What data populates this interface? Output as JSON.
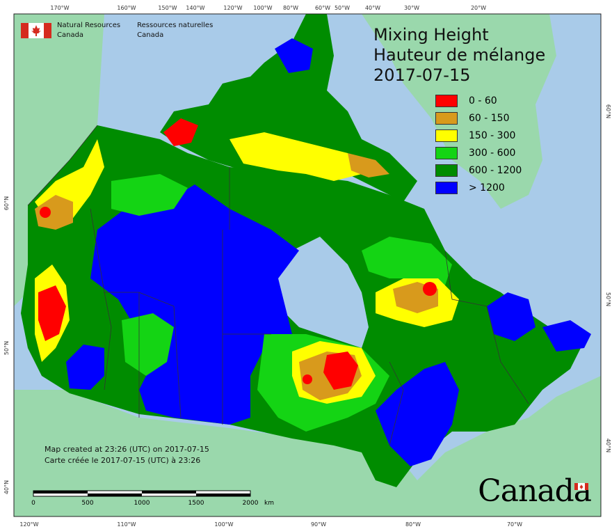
{
  "map": {
    "title_en": "Mixing Height",
    "title_fr": "Hauteur de mélange",
    "date": "2017-07-15",
    "agency_en_line1": "Natural Resources",
    "agency_en_line2": "Canada",
    "agency_fr_line1": "Ressources naturelles",
    "agency_fr_line2": "Canada",
    "created_en": "Map created at 23:26 (UTC) on 2017-07-15",
    "created_fr": "Carte créée le 2017-07-15 (UTC) à 23:26",
    "wordmark": "Canada",
    "scale": {
      "ticks": [
        "0",
        "500",
        "1000",
        "1500",
        "2000"
      ],
      "unit": "km"
    },
    "legend": [
      {
        "label": "0 - 60",
        "color": "#ff0000"
      },
      {
        "label": "60 - 150",
        "color": "#d89a1c"
      },
      {
        "label": "150 - 300",
        "color": "#ffff00"
      },
      {
        "label": "300 - 600",
        "color": "#14d414"
      },
      {
        "label": "600 - 1200",
        "color": "#008c00"
      },
      {
        "label": "> 1200",
        "color": "#0000ff"
      }
    ],
    "graticule_top": [
      "170°W",
      "160°W",
      "150°W",
      "140°W",
      "120°W",
      "100°W",
      "80°W",
      "60°W",
      "50°W",
      "40°W",
      "30°W",
      "20°W"
    ],
    "graticule_bottom": [
      "120°W",
      "110°W",
      "100°W",
      "90°W",
      "80°W",
      "70°W"
    ],
    "graticule_left": [
      "60°N",
      "50°N",
      "40°N"
    ],
    "graticule_right": [
      "60°N",
      "50°N",
      "40°N"
    ],
    "colors": {
      "ocean": "#a9cbe9",
      "land_outside": "#9ad8ac",
      "border": "#333333"
    }
  }
}
